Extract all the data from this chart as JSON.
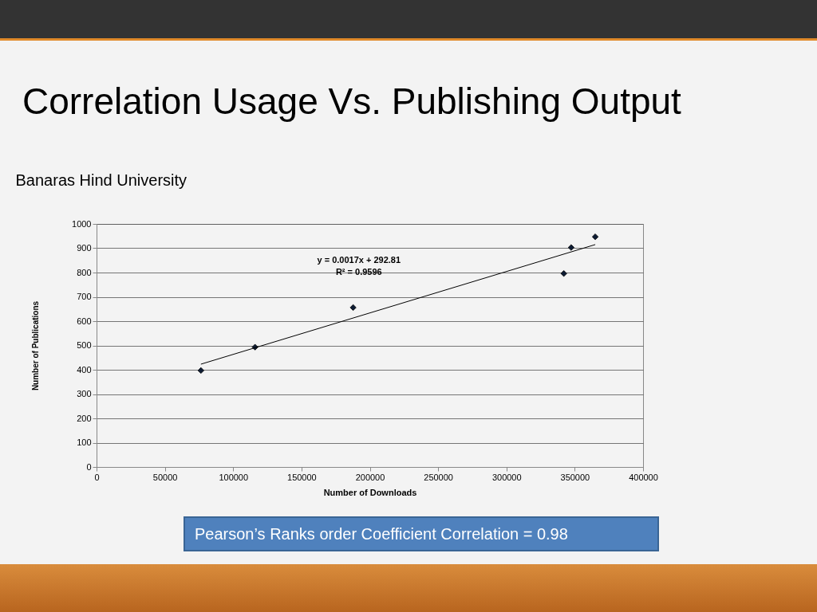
{
  "chart_data": {
    "type": "scatter",
    "title": "Correlation Usage Vs. Publishing Output",
    "subtitle": "Banaras Hind University",
    "xlabel": "Number of Downloads",
    "ylabel": "Number of Publications",
    "series": [
      {
        "color": "#0d1b33",
        "marker": "diamond",
        "x": [
          76400,
          116000,
          187800,
          342000,
          347400,
          365000
        ],
        "values": [
          397,
          493,
          656,
          796,
          903,
          947
        ]
      },
      {
        "type": "line",
        "color": "#000000",
        "x": [
          76400,
          365000
        ],
        "values": [
          423,
          915
        ]
      }
    ],
    "xlim": [
      0,
      400000
    ],
    "xticks": [
      0,
      50000,
      100000,
      150000,
      200000,
      250000,
      300000,
      350000,
      400000
    ],
    "ylim": [
      0,
      1000
    ],
    "yticks": [
      0,
      100,
      200,
      300,
      400,
      500,
      600,
      700,
      800,
      900,
      1000
    ],
    "grid": "y",
    "annotations": [
      "y = 0.0017x + 292.81",
      "R² = 0.9596",
      "Pearson’s Ranks order Coefficient Correlation = 0.98"
    ]
  }
}
